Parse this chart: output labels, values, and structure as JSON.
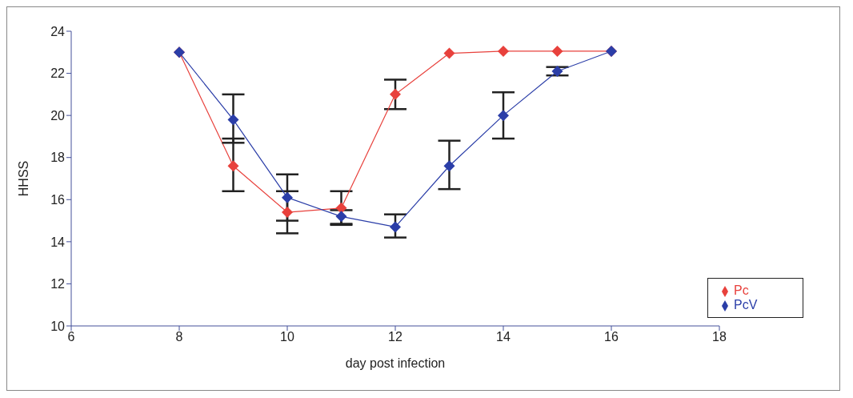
{
  "chart_data": {
    "type": "line",
    "xlabel": "day post infection",
    "ylabel": "HHSS",
    "x": [
      8,
      9,
      10,
      11,
      12,
      13,
      14,
      15,
      16
    ],
    "series": [
      {
        "name": "Pc",
        "color": "#e8413c",
        "values": [
          23,
          17.6,
          15.4,
          15.6,
          21,
          22.95,
          23.05,
          23.05,
          23.05
        ],
        "errors": [
          null,
          [
            16.4,
            18.9
          ],
          [
            14.4,
            16.4
          ],
          [
            14.8,
            16.4
          ],
          [
            20.3,
            21.7
          ],
          null,
          null,
          null,
          null
        ]
      },
      {
        "name": "PcV",
        "color": "#2b3ea8",
        "values": [
          23,
          19.8,
          16.1,
          15.2,
          14.7,
          17.6,
          20,
          22.1,
          23.05
        ],
        "errors": [
          null,
          [
            18.7,
            21
          ],
          [
            15,
            17.2
          ],
          [
            14.85,
            15.5
          ],
          [
            14.2,
            15.3
          ],
          [
            16.5,
            18.8
          ],
          [
            18.9,
            21.1
          ],
          [
            21.9,
            22.3
          ],
          null
        ]
      }
    ],
    "xlim": [
      6,
      18
    ],
    "xticks": [
      6,
      8,
      10,
      12,
      14,
      16,
      18
    ],
    "ylim": [
      10,
      24
    ],
    "yticks": [
      10,
      12,
      14,
      16,
      18,
      20,
      22,
      24
    ],
    "grid": false,
    "legend": "bottom right",
    "marker": "diamond",
    "line_style": "solid"
  }
}
